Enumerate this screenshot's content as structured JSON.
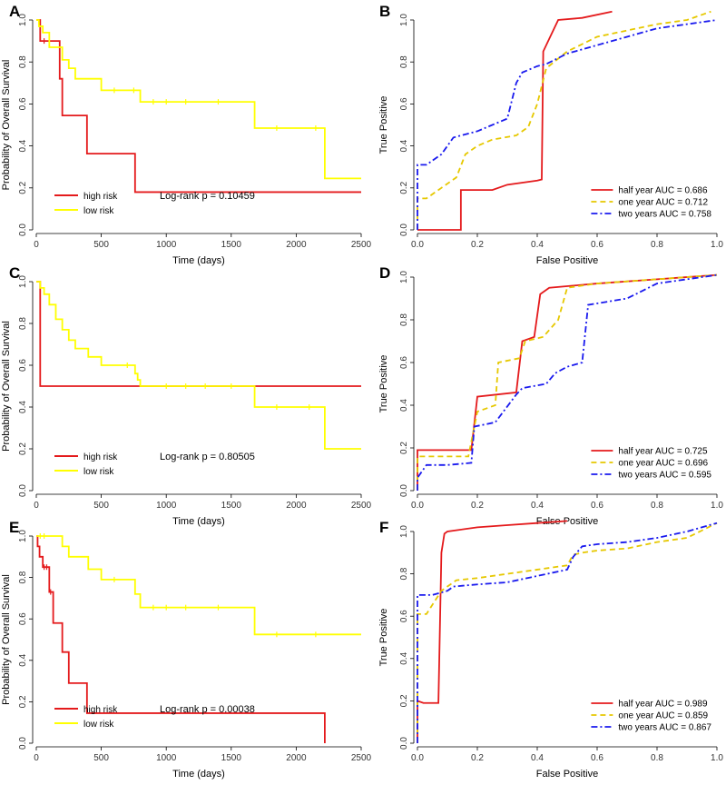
{
  "colors": {
    "high": "#e41a1c",
    "low": "#ffff00",
    "half": "#e41a1c",
    "one": "#e6c800",
    "two": "#1a1aee"
  },
  "chart_data": [
    {
      "panel": "A",
      "type": "line",
      "xlabel": "Time (days)",
      "ylabel": "Probability of Overall Survival",
      "xlim": [
        0,
        2500
      ],
      "ylim": [
        0,
        1
      ],
      "xticks": [
        "0",
        "500",
        "1000",
        "1500",
        "2000",
        "2500"
      ],
      "yticks": [
        "0.0",
        "0.2",
        "0.4",
        "0.6",
        "0.8",
        "1.0"
      ],
      "annotation": "Log-rank p = 0.10459",
      "series": [
        {
          "name": "high risk",
          "color": "#e41a1c",
          "step": true,
          "x": [
            0,
            30,
            60,
            180,
            200,
            390,
            760,
            2500
          ],
          "y": [
            1.0,
            0.9,
            0.9,
            0.72,
            0.545,
            0.363,
            0.18,
            0.18
          ],
          "censor": [
            [
              60,
              0.9
            ]
          ]
        },
        {
          "name": "low risk",
          "color": "#ffff00",
          "step": true,
          "x": [
            0,
            20,
            50,
            100,
            200,
            250,
            300,
            500,
            800,
            1680,
            2220,
            2500
          ],
          "y": [
            1.0,
            0.97,
            0.94,
            0.87,
            0.81,
            0.77,
            0.72,
            0.665,
            0.61,
            0.485,
            0.245,
            0.245
          ],
          "censor": [
            [
              600,
              0.665
            ],
            [
              750,
              0.665
            ],
            [
              900,
              0.61
            ],
            [
              1000,
              0.61
            ],
            [
              1150,
              0.61
            ],
            [
              1400,
              0.61
            ],
            [
              1850,
              0.485
            ],
            [
              2150,
              0.485
            ]
          ]
        }
      ]
    },
    {
      "panel": "B",
      "type": "line",
      "xlabel": "False Positive",
      "ylabel": "True Positive",
      "xlim": [
        0,
        1
      ],
      "ylim": [
        0,
        1
      ],
      "xticks": [
        "0.0",
        "0.2",
        "0.4",
        "0.6",
        "0.8",
        "1.0"
      ],
      "yticks": [
        "0.0",
        "0.2",
        "0.4",
        "0.6",
        "0.8",
        "1.0"
      ],
      "series": [
        {
          "name": "half year AUC = 0.686",
          "color": "#e41a1c",
          "dash": "",
          "x": [
            0,
            0.145,
            0.145,
            0.25,
            0.3,
            0.4,
            0.415,
            0.42,
            0.44,
            0.47,
            0.55,
            0.65
          ],
          "y": [
            0,
            0,
            0.19,
            0.19,
            0.215,
            0.235,
            0.24,
            0.85,
            0.91,
            1.0,
            1.01,
            1.04
          ]
        },
        {
          "name": "one year AUC = 0.712",
          "color": "#e6c800",
          "dash": "6,4",
          "x": [
            0,
            0,
            0.03,
            0.08,
            0.13,
            0.16,
            0.2,
            0.25,
            0.33,
            0.37,
            0.4,
            0.43,
            0.5,
            0.6,
            0.7,
            0.8,
            0.9,
            0.98
          ],
          "y": [
            0,
            0.15,
            0.15,
            0.2,
            0.25,
            0.36,
            0.4,
            0.43,
            0.45,
            0.49,
            0.6,
            0.77,
            0.85,
            0.92,
            0.95,
            0.98,
            1.0,
            1.04
          ]
        },
        {
          "name": "two years AUC = 0.758",
          "color": "#1a1aee",
          "dash": "7,3,2,3",
          "x": [
            0,
            0,
            0.03,
            0.08,
            0.12,
            0.2,
            0.3,
            0.33,
            0.35,
            0.4,
            0.43,
            0.5,
            0.6,
            0.7,
            0.8,
            0.9,
            1.0
          ],
          "y": [
            0,
            0.31,
            0.31,
            0.36,
            0.44,
            0.47,
            0.53,
            0.7,
            0.75,
            0.78,
            0.79,
            0.84,
            0.88,
            0.92,
            0.96,
            0.98,
            1.0
          ]
        }
      ]
    },
    {
      "panel": "C",
      "type": "line",
      "xlabel": "Time (days)",
      "ylabel": "Probability of Overall Survival",
      "xlim": [
        0,
        2500
      ],
      "ylim": [
        0,
        1
      ],
      "xticks": [
        "0",
        "500",
        "1000",
        "1500",
        "2000",
        "2500"
      ],
      "yticks": [
        "0.0",
        "0.2",
        "0.4",
        "0.6",
        "0.8",
        "1.0"
      ],
      "annotation": "Log-rank p = 0.80505",
      "series": [
        {
          "name": "high risk",
          "color": "#e41a1c",
          "step": true,
          "x": [
            0,
            30,
            2500
          ],
          "y": [
            1.0,
            0.5,
            0.5
          ],
          "censor": []
        },
        {
          "name": "low risk",
          "color": "#ffff00",
          "step": true,
          "x": [
            0,
            30,
            60,
            100,
            150,
            200,
            250,
            300,
            400,
            500,
            760,
            780,
            800,
            1680,
            2220,
            2500
          ],
          "y": [
            1.0,
            0.97,
            0.94,
            0.89,
            0.82,
            0.77,
            0.72,
            0.68,
            0.64,
            0.6,
            0.56,
            0.53,
            0.5,
            0.4,
            0.2,
            0.2
          ],
          "censor": [
            [
              700,
              0.6
            ],
            [
              1000,
              0.5
            ],
            [
              1150,
              0.5
            ],
            [
              1300,
              0.5
            ],
            [
              1500,
              0.5
            ],
            [
              1850,
              0.4
            ],
            [
              2100,
              0.4
            ]
          ]
        }
      ]
    },
    {
      "panel": "D",
      "type": "line",
      "xlabel": "False Positive",
      "ylabel": "True Positive",
      "xlim": [
        0,
        1
      ],
      "ylim": [
        0,
        1
      ],
      "xticks": [
        "0.0",
        "0.2",
        "0.4",
        "0.6",
        "0.8",
        "1.0"
      ],
      "yticks": [
        "0.0",
        "0.2",
        "0.4",
        "0.6",
        "0.8",
        "1.0"
      ],
      "series": [
        {
          "name": "half year AUC = 0.725",
          "color": "#e41a1c",
          "dash": "",
          "x": [
            0,
            0,
            0.18,
            0.2,
            0.33,
            0.35,
            0.39,
            0.41,
            0.44,
            0.6,
            0.8,
            1.0
          ],
          "y": [
            0,
            0.19,
            0.19,
            0.44,
            0.46,
            0.7,
            0.72,
            0.92,
            0.95,
            0.97,
            0.99,
            1.01
          ]
        },
        {
          "name": "one year AUC = 0.696",
          "color": "#e6c800",
          "dash": "6,4",
          "x": [
            0,
            0,
            0.17,
            0.2,
            0.26,
            0.27,
            0.34,
            0.36,
            0.42,
            0.47,
            0.5,
            0.6,
            0.8,
            1.0
          ],
          "y": [
            0,
            0.16,
            0.16,
            0.37,
            0.4,
            0.6,
            0.62,
            0.7,
            0.72,
            0.8,
            0.95,
            0.97,
            0.99,
            1.01
          ]
        },
        {
          "name": "two years AUC = 0.595",
          "color": "#1a1aee",
          "dash": "7,3,2,3",
          "x": [
            0,
            0,
            0.03,
            0.1,
            0.18,
            0.19,
            0.26,
            0.33,
            0.35,
            0.43,
            0.46,
            0.5,
            0.55,
            0.57,
            0.7,
            0.8,
            1.0
          ],
          "y": [
            0,
            0.06,
            0.12,
            0.12,
            0.13,
            0.3,
            0.32,
            0.45,
            0.48,
            0.5,
            0.55,
            0.58,
            0.6,
            0.87,
            0.9,
            0.97,
            1.01
          ]
        }
      ]
    },
    {
      "panel": "E",
      "type": "line",
      "xlabel": "Time (days)",
      "ylabel": "Probability of Overall Survival",
      "xlim": [
        0,
        2500
      ],
      "ylim": [
        0,
        1
      ],
      "xticks": [
        "0",
        "500",
        "1000",
        "1500",
        "2000",
        "2500"
      ],
      "yticks": [
        "0.0",
        "0.2",
        "0.4",
        "0.6",
        "0.8",
        "1.0"
      ],
      "annotation": "Log-rank p = 0.00038",
      "series": [
        {
          "name": "high risk",
          "color": "#e41a1c",
          "step": true,
          "x": [
            0,
            10,
            25,
            50,
            100,
            130,
            200,
            250,
            390,
            2220,
            2220
          ],
          "y": [
            1.0,
            0.95,
            0.9,
            0.85,
            0.73,
            0.58,
            0.44,
            0.29,
            0.145,
            0.145,
            0.0
          ],
          "censor": [
            [
              60,
              0.85
            ],
            [
              80,
              0.85
            ],
            [
              110,
              0.73
            ]
          ]
        },
        {
          "name": "low risk",
          "color": "#ffff00",
          "step": true,
          "x": [
            0,
            200,
            250,
            400,
            500,
            760,
            800,
            1680,
            2500
          ],
          "y": [
            1.0,
            0.95,
            0.9,
            0.84,
            0.79,
            0.72,
            0.655,
            0.525,
            0.525
          ],
          "censor": [
            [
              30,
              1.0
            ],
            [
              60,
              1.0
            ],
            [
              600,
              0.79
            ],
            [
              900,
              0.655
            ],
            [
              1000,
              0.655
            ],
            [
              1150,
              0.655
            ],
            [
              1400,
              0.655
            ],
            [
              1850,
              0.525
            ],
            [
              2150,
              0.525
            ]
          ]
        }
      ]
    },
    {
      "panel": "F",
      "type": "line",
      "xlabel": "False Positive",
      "ylabel": "True Positive",
      "xlim": [
        0,
        1
      ],
      "ylim": [
        0,
        1
      ],
      "xticks": [
        "0.0",
        "0.2",
        "0.4",
        "0.6",
        "0.8",
        "1.0"
      ],
      "yticks": [
        "0.0",
        "0.2",
        "0.4",
        "0.6",
        "0.8",
        "1.0"
      ],
      "series": [
        {
          "name": "half year AUC = 0.989",
          "color": "#e41a1c",
          "dash": "",
          "x": [
            0,
            0,
            0.02,
            0.07,
            0.08,
            0.09,
            0.1,
            0.2,
            0.3,
            0.4,
            0.5
          ],
          "y": [
            0,
            0.2,
            0.19,
            0.19,
            0.9,
            0.99,
            1.0,
            1.02,
            1.03,
            1.04,
            1.05
          ]
        },
        {
          "name": "one year AUC = 0.859",
          "color": "#e6c800",
          "dash": "6,4",
          "x": [
            0,
            0,
            0.03,
            0.08,
            0.13,
            0.2,
            0.3,
            0.4,
            0.5,
            0.52,
            0.55,
            0.6,
            0.7,
            0.8,
            0.9,
            1.0
          ],
          "y": [
            0,
            0.61,
            0.61,
            0.72,
            0.77,
            0.78,
            0.8,
            0.82,
            0.84,
            0.89,
            0.9,
            0.91,
            0.92,
            0.95,
            0.97,
            1.04
          ]
        },
        {
          "name": "two years AUC = 0.867",
          "color": "#1a1aee",
          "dash": "7,3,2,3",
          "x": [
            0,
            0,
            0.05,
            0.1,
            0.12,
            0.2,
            0.3,
            0.4,
            0.5,
            0.52,
            0.55,
            0.6,
            0.7,
            0.8,
            0.9,
            1.0
          ],
          "y": [
            0,
            0.7,
            0.7,
            0.72,
            0.74,
            0.75,
            0.76,
            0.79,
            0.82,
            0.88,
            0.93,
            0.94,
            0.95,
            0.97,
            1.0,
            1.04
          ]
        }
      ]
    }
  ]
}
